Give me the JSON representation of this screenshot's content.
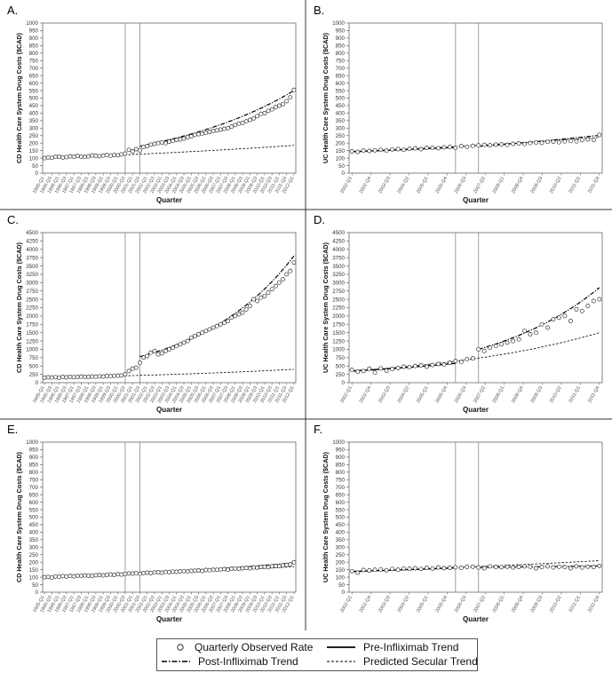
{
  "chart_data": [
    {
      "label": "A.",
      "type": "line",
      "xlabel": "Quarter",
      "ylabel": "CD Health Care System Drug Costs ($CAD)",
      "ylim": [
        0,
        1000
      ],
      "yticks": [
        0,
        50,
        100,
        150,
        200,
        250,
        300,
        350,
        400,
        450,
        500,
        550,
        600,
        650,
        700,
        750,
        800,
        850,
        900,
        950,
        1000
      ],
      "x_ticks": [
        "1995-Q1",
        "1995-Q3",
        "1996-Q1",
        "1996-Q3",
        "1997-Q1",
        "1997-Q3",
        "1998-Q1",
        "1998-Q3",
        "1999-Q1",
        "1999-Q3",
        "2000-Q1",
        "2000-Q3",
        "2001-Q1",
        "2001-Q3",
        "2002-Q1",
        "2002-Q3",
        "2003-Q1",
        "2003-Q3",
        "2004-Q1",
        "2004-Q3",
        "2005-Q1",
        "2005-Q3",
        "2006-Q1",
        "2006-Q3",
        "2007-Q1",
        "2007-Q3",
        "2008-Q1",
        "2008-Q3",
        "2009-Q1",
        "2009-Q3",
        "2010-Q1",
        "2010-Q3",
        "2011-Q1",
        "2011-Q3",
        "2012-Q1"
      ],
      "n_quarters": 69,
      "breaks": [
        22,
        26
      ],
      "observed": [
        100,
        105,
        102,
        108,
        110,
        104,
        107,
        112,
        109,
        115,
        110,
        108,
        112,
        118,
        115,
        113,
        117,
        120,
        116,
        121,
        119,
        125,
        130,
        155,
        145,
        160,
        152,
        175,
        180,
        190,
        195,
        200,
        205,
        200,
        210,
        215,
        222,
        225,
        230,
        240,
        245,
        255,
        260,
        262,
        268,
        275,
        280,
        285,
        290,
        295,
        300,
        310,
        320,
        330,
        335,
        345,
        355,
        365,
        380,
        395,
        400,
        415,
        425,
        440,
        450,
        460,
        480,
        505,
        555
      ],
      "pre_trend": {
        "from": 0,
        "to": 22,
        "start": 100,
        "end": 124
      },
      "post_trend": {
        "from": 26,
        "to": 68,
        "start": 180,
        "end": 550
      },
      "secular": {
        "from": 0,
        "to": 68,
        "start": 100,
        "end": 185
      }
    },
    {
      "label": "B.",
      "type": "line",
      "xlabel": "Quarter",
      "ylabel": "UC Health Care System Drug Costs ($CAD)",
      "ylim": [
        0,
        1000
      ],
      "yticks": [
        0,
        50,
        100,
        150,
        200,
        250,
        300,
        350,
        400,
        450,
        500,
        550,
        600,
        650,
        700,
        750,
        800,
        850,
        900,
        950,
        1000
      ],
      "x_ticks": [
        "2002-Q1",
        "2002-Q4",
        "2003-Q3",
        "2004-Q2",
        "2005-Q1",
        "2005-Q4",
        "2006-Q3",
        "2007-Q2",
        "2008-Q1",
        "2008-Q4",
        "2009-Q3",
        "2010-Q2",
        "2011-Q1",
        "2011-Q4"
      ],
      "n_quarters": 44,
      "breaks": [
        18,
        22
      ],
      "observed": [
        145,
        142,
        150,
        148,
        152,
        155,
        150,
        158,
        160,
        155,
        162,
        165,
        160,
        168,
        170,
        166,
        172,
        175,
        168,
        180,
        176,
        182,
        185,
        188,
        186,
        190,
        192,
        188,
        195,
        198,
        194,
        200,
        205,
        202,
        208,
        210,
        206,
        212,
        215,
        212,
        220,
        225,
        222,
        255
      ],
      "pre_trend": {
        "from": 0,
        "to": 18,
        "start": 143,
        "end": 172
      },
      "post_trend": {
        "from": 22,
        "to": 43,
        "start": 178,
        "end": 252
      },
      "secular": {
        "from": 0,
        "to": 43,
        "start": 143,
        "end": 238
      }
    },
    {
      "label": "C.",
      "type": "line",
      "xlabel": "Quarter",
      "ylabel": "CD Health Care System Drug Costs ($CAD)",
      "ylim": [
        0,
        4500
      ],
      "yticks": [
        0,
        250,
        500,
        750,
        1000,
        1250,
        1500,
        1750,
        2000,
        2250,
        2500,
        2750,
        3000,
        3250,
        3500,
        3750,
        4000,
        4250,
        4500
      ],
      "x_ticks": [
        "1995-Q1",
        "1995-Q3",
        "1996-Q1",
        "1996-Q3",
        "1997-Q1",
        "1997-Q3",
        "1998-Q1",
        "1998-Q3",
        "1999-Q1",
        "1999-Q3",
        "2000-Q1",
        "2000-Q3",
        "2001-Q1",
        "2001-Q3",
        "2002-Q1",
        "2002-Q3",
        "2003-Q1",
        "2003-Q3",
        "2004-Q1",
        "2004-Q3",
        "2005-Q1",
        "2005-Q3",
        "2006-Q1",
        "2006-Q3",
        "2007-Q1",
        "2007-Q3",
        "2008-Q1",
        "2008-Q3",
        "2009-Q1",
        "2009-Q3",
        "2010-Q1",
        "2010-Q3",
        "2011-Q1",
        "2011-Q3",
        "2012-Q1"
      ],
      "n_quarters": 69,
      "breaks": [
        22,
        26
      ],
      "observed": [
        150,
        160,
        155,
        165,
        150,
        170,
        160,
        175,
        165,
        170,
        180,
        175,
        170,
        185,
        180,
        190,
        185,
        200,
        195,
        205,
        210,
        215,
        250,
        350,
        420,
        450,
        600,
        750,
        800,
        900,
        950,
        850,
        880,
        950,
        1000,
        1050,
        1100,
        1150,
        1200,
        1250,
        1350,
        1400,
        1450,
        1500,
        1550,
        1600,
        1650,
        1700,
        1750,
        1800,
        1850,
        1950,
        2000,
        2050,
        2100,
        2200,
        2300,
        2500,
        2450,
        2550,
        2600,
        2700,
        2800,
        2900,
        3000,
        3100,
        3250,
        3350,
        3600
      ],
      "pre_trend": {
        "from": 0,
        "to": 22,
        "start": 150,
        "end": 225
      },
      "post_trend": {
        "from": 26,
        "to": 68,
        "start": 780,
        "end": 3800
      },
      "secular": {
        "from": 0,
        "to": 68,
        "start": 150,
        "end": 400
      }
    },
    {
      "label": "D.",
      "type": "line",
      "xlabel": "Quarter",
      "ylabel": "UC Health Care System Drug Costs ($CAD)",
      "ylim": [
        0,
        4500
      ],
      "yticks": [
        0,
        250,
        500,
        750,
        1000,
        1250,
        1500,
        1750,
        2000,
        2250,
        2500,
        2750,
        3000,
        3250,
        3500,
        3750,
        4000,
        4250,
        4500
      ],
      "x_ticks": [
        "2002-Q1",
        "2002-Q4",
        "2003-Q3",
        "2004-Q2",
        "2005-Q1",
        "2005-Q4",
        "2006-Q3",
        "2007-Q2",
        "2008-Q1",
        "2008-Q4",
        "2009-Q3",
        "2010-Q2",
        "2011-Q1",
        "2011-Q4"
      ],
      "n_quarters": 44,
      "breaks": [
        18,
        22
      ],
      "observed": [
        380,
        330,
        350,
        420,
        300,
        430,
        360,
        410,
        440,
        480,
        460,
        500,
        520,
        480,
        530,
        560,
        540,
        600,
        650,
        620,
        700,
        730,
        1000,
        950,
        1050,
        1100,
        1150,
        1200,
        1250,
        1300,
        1550,
        1450,
        1500,
        1750,
        1650,
        1900,
        1950,
        2000,
        1850,
        2200,
        2150,
        2300,
        2450,
        2500
      ],
      "pre_trend": {
        "from": 0,
        "to": 18,
        "start": 350,
        "end": 580
      },
      "post_trend": {
        "from": 22,
        "to": 43,
        "start": 1000,
        "end": 2850
      },
      "secular": {
        "from": 0,
        "to": 43,
        "start": 350,
        "end": 1500
      }
    },
    {
      "label": "E.",
      "type": "line",
      "xlabel": "Quarter",
      "ylabel": "CD Health Care System Drug Costs ($CAD)",
      "ylim": [
        0,
        1000
      ],
      "yticks": [
        0,
        50,
        100,
        150,
        200,
        250,
        300,
        350,
        400,
        450,
        500,
        550,
        600,
        650,
        700,
        750,
        800,
        850,
        900,
        950,
        1000
      ],
      "x_ticks": [
        "1995-Q1",
        "1995-Q3",
        "1996-Q1",
        "1996-Q3",
        "1997-Q1",
        "1997-Q3",
        "1998-Q1",
        "1998-Q3",
        "1999-Q1",
        "1999-Q3",
        "2000-Q1",
        "2000-Q3",
        "2001-Q1",
        "2001-Q3",
        "2002-Q1",
        "2002-Q3",
        "2003-Q1",
        "2003-Q3",
        "2004-Q1",
        "2004-Q3",
        "2005-Q1",
        "2005-Q3",
        "2006-Q1",
        "2006-Q3",
        "2007-Q1",
        "2007-Q3",
        "2008-Q1",
        "2008-Q3",
        "2009-Q1",
        "2009-Q3",
        "2010-Q1",
        "2010-Q3",
        "2011-Q1",
        "2011-Q3",
        "2012-Q1"
      ],
      "n_quarters": 69,
      "breaks": [
        22,
        26
      ],
      "observed": [
        100,
        102,
        98,
        105,
        103,
        107,
        104,
        108,
        106,
        110,
        108,
        112,
        110,
        109,
        113,
        115,
        112,
        116,
        118,
        115,
        120,
        118,
        122,
        125,
        124,
        126,
        123,
        128,
        130,
        127,
        132,
        133,
        130,
        135,
        134,
        137,
        136,
        139,
        140,
        138,
        142,
        143,
        145,
        142,
        148,
        147,
        150,
        149,
        152,
        154,
        151,
        156,
        158,
        155,
        160,
        162,
        159,
        165,
        164,
        168,
        170,
        167,
        172,
        175,
        174,
        178,
        182,
        186,
        200
      ],
      "pre_trend": {
        "from": 0,
        "to": 22,
        "start": 100,
        "end": 118
      },
      "post_trend": {
        "from": 26,
        "to": 68,
        "start": 124,
        "end": 195
      },
      "secular": {
        "from": 0,
        "to": 68,
        "start": 100,
        "end": 170
      }
    },
    {
      "label": "F.",
      "type": "line",
      "xlabel": "Quarter",
      "ylabel": "UC Health Care System Drug Costs ($CAD)",
      "ylim": [
        0,
        1000
      ],
      "yticks": [
        0,
        50,
        100,
        150,
        200,
        250,
        300,
        350,
        400,
        450,
        500,
        550,
        600,
        650,
        700,
        750,
        800,
        850,
        900,
        950,
        1000
      ],
      "x_ticks": [
        "2002-Q1",
        "2002-Q4",
        "2003-Q3",
        "2004-Q2",
        "2005-Q1",
        "2005-Q4",
        "2006-Q3",
        "2007-Q2",
        "2008-Q1",
        "2008-Q4",
        "2009-Q3",
        "2010-Q2",
        "2011-Q1",
        "2011-Q4"
      ],
      "n_quarters": 44,
      "breaks": [
        18,
        22
      ],
      "observed": [
        140,
        130,
        148,
        145,
        150,
        152,
        146,
        155,
        150,
        158,
        156,
        160,
        155,
        162,
        158,
        165,
        160,
        163,
        166,
        162,
        168,
        170,
        165,
        160,
        172,
        168,
        166,
        170,
        165,
        168,
        172,
        170,
        160,
        168,
        172,
        165,
        170,
        168,
        160,
        172,
        165,
        170,
        168,
        175
      ],
      "pre_trend": {
        "from": 0,
        "to": 18,
        "start": 138,
        "end": 162
      },
      "post_trend": {
        "from": 22,
        "to": 43,
        "start": 165,
        "end": 175
      },
      "secular": {
        "from": 0,
        "to": 43,
        "start": 138,
        "end": 210
      }
    }
  ],
  "legend": {
    "observed": "Quarterly Observed Rate",
    "pre": "Pre-Infliximab Trend",
    "post": "Post-Infliximab Trend",
    "secular": "Predicted Secular Trend"
  }
}
